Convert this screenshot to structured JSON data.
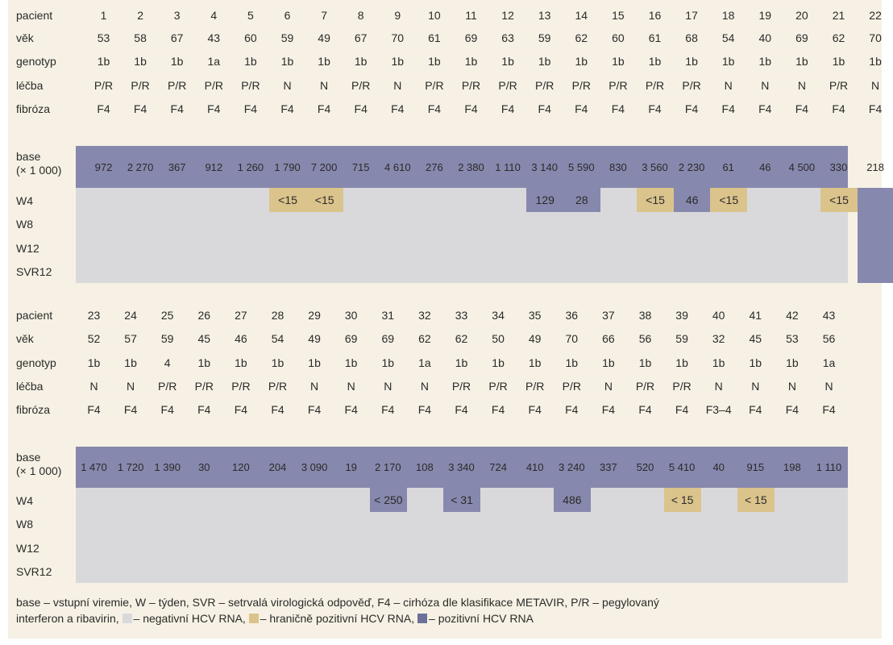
{
  "colors": {
    "negative": "#d9d9dc",
    "borderline": "#dbc38c",
    "positive": "#8788ad",
    "background": "#f6f1e4"
  },
  "labels": {
    "pacient": "pacient",
    "vek": "věk",
    "genotyp": "genotyp",
    "lecba": "léčba",
    "fibroza": "fibróza",
    "base_line1": "base",
    "base_line2": "(× 1 000)",
    "w4": "W4",
    "w8": "W8",
    "w12": "W12",
    "svr12": "SVR12"
  },
  "blocks": [
    {
      "pacient": [
        "1",
        "2",
        "3",
        "4",
        "5",
        "6",
        "7",
        "8",
        "9",
        "10",
        "11",
        "12",
        "13",
        "14",
        "15",
        "16",
        "17",
        "18",
        "19",
        "20",
        "21",
        "22"
      ],
      "vek": [
        "53",
        "58",
        "67",
        "43",
        "60",
        "59",
        "49",
        "67",
        "70",
        "61",
        "69",
        "63",
        "59",
        "62",
        "60",
        "61",
        "68",
        "54",
        "40",
        "69",
        "62",
        "70"
      ],
      "genotyp": [
        "1b",
        "1b",
        "1b",
        "1a",
        "1b",
        "1b",
        "1b",
        "1b",
        "1b",
        "1b",
        "1b",
        "1b",
        "1b",
        "1b",
        "1b",
        "1b",
        "1b",
        "1b",
        "1b",
        "1b",
        "1b",
        "1b"
      ],
      "lecba": [
        "P/R",
        "P/R",
        "P/R",
        "P/R",
        "P/R",
        "N",
        "N",
        "P/R",
        "N",
        "P/R",
        "P/R",
        "P/R",
        "P/R",
        "P/R",
        "P/R",
        "P/R",
        "P/R",
        "N",
        "N",
        "N",
        "P/R",
        "N"
      ],
      "fibroza": [
        "F4",
        "F4",
        "F4",
        "F4",
        "F4",
        "F4",
        "F4",
        "F4",
        "F4",
        "F4",
        "F4",
        "F4",
        "F4",
        "F4",
        "F4",
        "F4",
        "F4",
        "F4",
        "F4",
        "F4",
        "F4",
        "F4"
      ],
      "base": [
        "972",
        "2 270",
        "367",
        "912",
        "1 260",
        "1 790",
        "7 200",
        "715",
        "4 610",
        "276",
        "2 380",
        "1 110",
        "3 140",
        "5 590",
        "830",
        "3 560",
        "2 230",
        "61",
        "46",
        "4 500",
        "330",
        "218"
      ],
      "w4": [
        {
          "s": "n",
          "v": ""
        },
        {
          "s": "n",
          "v": ""
        },
        {
          "s": "n",
          "v": ""
        },
        {
          "s": "n",
          "v": ""
        },
        {
          "s": "n",
          "v": ""
        },
        {
          "s": "b",
          "v": "<15"
        },
        {
          "s": "b",
          "v": "<15"
        },
        {
          "s": "n",
          "v": ""
        },
        {
          "s": "n",
          "v": ""
        },
        {
          "s": "n",
          "v": ""
        },
        {
          "s": "n",
          "v": ""
        },
        {
          "s": "n",
          "v": ""
        },
        {
          "s": "p",
          "v": "129"
        },
        {
          "s": "p",
          "v": "28"
        },
        {
          "s": "n",
          "v": ""
        },
        {
          "s": "b",
          "v": "<15"
        },
        {
          "s": "p",
          "v": "46"
        },
        {
          "s": "b",
          "v": "<15"
        },
        {
          "s": "n",
          "v": ""
        },
        {
          "s": "n",
          "v": ""
        },
        {
          "s": "b",
          "v": "<15"
        },
        {
          "s": "p",
          "v": ""
        }
      ],
      "w8": [
        "n",
        "n",
        "n",
        "n",
        "n",
        "n",
        "n",
        "n",
        "n",
        "n",
        "n",
        "n",
        "n",
        "n",
        "n",
        "n",
        "n",
        "n",
        "n",
        "n",
        "n",
        "p"
      ],
      "w12": [
        "n",
        "n",
        "n",
        "n",
        "n",
        "n",
        "n",
        "n",
        "n",
        "n",
        "n",
        "n",
        "n",
        "n",
        "n",
        "n",
        "n",
        "n",
        "n",
        "n",
        "n",
        "p"
      ],
      "svr12": [
        "n",
        "n",
        "n",
        "n",
        "n",
        "n",
        "n",
        "n",
        "n",
        "n",
        "n",
        "n",
        "n",
        "n",
        "n",
        "n",
        "n",
        "n",
        "n",
        "n",
        "n",
        "p"
      ]
    },
    {
      "pacient": [
        "23",
        "24",
        "25",
        "26",
        "27",
        "28",
        "29",
        "30",
        "31",
        "32",
        "33",
        "34",
        "35",
        "36",
        "37",
        "38",
        "39",
        "40",
        "41",
        "42",
        "43"
      ],
      "vek": [
        "52",
        "57",
        "59",
        "45",
        "46",
        "54",
        "49",
        "69",
        "69",
        "62",
        "62",
        "50",
        "49",
        "70",
        "66",
        "56",
        "59",
        "32",
        "45",
        "53",
        "56"
      ],
      "genotyp": [
        "1b",
        "1b",
        "4",
        "1b",
        "1b",
        "1b",
        "1b",
        "1b",
        "1b",
        "1a",
        "1b",
        "1b",
        "1b",
        "1b",
        "1b",
        "1b",
        "1b",
        "1b",
        "1b",
        "1b",
        "1a"
      ],
      "lecba": [
        "N",
        "N",
        "P/R",
        "P/R",
        "P/R",
        "P/R",
        "N",
        "N",
        "N",
        "N",
        "P/R",
        "P/R",
        "P/R",
        "P/R",
        "N",
        "P/R",
        "P/R",
        "N",
        "N",
        "N",
        "N"
      ],
      "fibroza": [
        "F4",
        "F4",
        "F4",
        "F4",
        "F4",
        "F4",
        "F4",
        "F4",
        "F4",
        "F4",
        "F4",
        "F4",
        "F4",
        "F4",
        "F4",
        "F4",
        "F4",
        "F3–4",
        "F4",
        "F4",
        "F4"
      ],
      "base": [
        "1 470",
        "1 720",
        "1 390",
        "30",
        "120",
        "204",
        "3 090",
        "19",
        "2 170",
        "108",
        "3 340",
        "724",
        "410",
        "3 240",
        "337",
        "520",
        "5 410",
        "40",
        "915",
        "198",
        "1 110"
      ],
      "w4": [
        {
          "s": "n",
          "v": ""
        },
        {
          "s": "n",
          "v": ""
        },
        {
          "s": "n",
          "v": ""
        },
        {
          "s": "n",
          "v": ""
        },
        {
          "s": "n",
          "v": ""
        },
        {
          "s": "n",
          "v": ""
        },
        {
          "s": "n",
          "v": ""
        },
        {
          "s": "n",
          "v": ""
        },
        {
          "s": "p",
          "v": "< 250"
        },
        {
          "s": "n",
          "v": ""
        },
        {
          "s": "p",
          "v": "< 31"
        },
        {
          "s": "n",
          "v": ""
        },
        {
          "s": "n",
          "v": ""
        },
        {
          "s": "p",
          "v": "486"
        },
        {
          "s": "n",
          "v": ""
        },
        {
          "s": "n",
          "v": ""
        },
        {
          "s": "b",
          "v": "< 15"
        },
        {
          "s": "n",
          "v": ""
        },
        {
          "s": "b",
          "v": "< 15"
        },
        {
          "s": "n",
          "v": ""
        },
        {
          "s": "n",
          "v": ""
        }
      ],
      "w8": [
        "n",
        "n",
        "n",
        "n",
        "n",
        "n",
        "n",
        "n",
        "n",
        "n",
        "n",
        "n",
        "n",
        "n",
        "n",
        "n",
        "n",
        "n",
        "n",
        "n",
        "n"
      ],
      "w12": [
        "n",
        "n",
        "n",
        "n",
        "n",
        "n",
        "n",
        "n",
        "n",
        "n",
        "n",
        "n",
        "n",
        "n",
        "n",
        "n",
        "n",
        "n",
        "n",
        "n",
        "n"
      ],
      "svr12": [
        "n",
        "n",
        "n",
        "n",
        "n",
        "n",
        "n",
        "n",
        "n",
        "n",
        "n",
        "n",
        "n",
        "n",
        "n",
        "n",
        "n",
        "n",
        "n",
        "n",
        "n"
      ]
    }
  ],
  "legend": {
    "line1": "base – vstupní viremie, W – týden, SVR – setrvalá virologická odpověď, F4 – cirhóza dle klasifikace METAVIR, P/R – pegylovaný",
    "line2_start": "interferon a ribavirin,",
    "negative": "– negativní HCV RNA,",
    "borderline": "– hraničně pozitivní HCV RNA,",
    "positive": "– pozitivní HCV RNA"
  }
}
